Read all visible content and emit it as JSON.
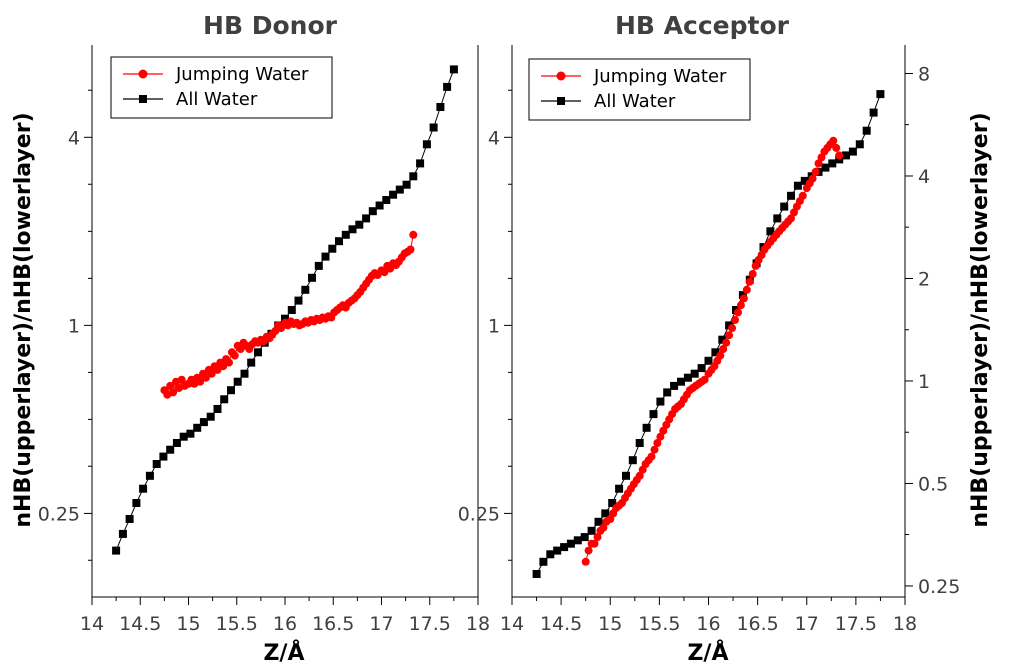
{
  "chart_data": [
    {
      "type": "scatter",
      "title": "HB Donor",
      "xlabel": "Z/Å",
      "ylabel": "nHB(upperlayer)/nHB(lowerlayer)",
      "xlim": [
        14,
        18
      ],
      "ylim": [
        0.135,
        7.9
      ],
      "yscale": "log2",
      "xticks": [
        "14",
        "14.5",
        "15",
        "15.5",
        "16",
        "16.5",
        "17",
        "17.5",
        "18"
      ],
      "yticks": [
        "0.25",
        "1",
        "4"
      ],
      "legend": "top-left",
      "series": [
        {
          "name": "Jumping Water",
          "color": "#ff0000",
          "marker": "circle",
          "x": [
            14.75,
            14.78,
            14.81,
            14.84,
            14.87,
            14.9,
            14.93,
            14.96,
            15.0,
            15.03,
            15.06,
            15.09,
            15.12,
            15.15,
            15.18,
            15.21,
            15.24,
            15.27,
            15.3,
            15.33,
            15.36,
            15.39,
            15.42,
            15.45,
            15.48,
            15.51,
            15.54,
            15.57,
            15.6,
            15.63,
            15.66,
            15.69,
            15.72,
            15.75,
            15.78,
            15.81,
            15.84,
            15.87,
            15.9,
            15.93,
            15.96,
            16.0,
            16.03,
            16.06,
            16.09,
            16.12,
            16.15,
            16.18,
            16.21,
            16.24,
            16.27,
            16.3,
            16.33,
            16.36,
            16.39,
            16.42,
            16.45,
            16.48,
            16.51,
            16.54,
            16.57,
            16.6,
            16.63,
            16.66,
            16.69,
            16.72,
            16.75,
            16.78,
            16.81,
            16.84,
            16.87,
            16.9,
            16.93,
            16.96,
            17.0,
            17.03,
            17.06,
            17.09,
            17.12,
            17.15,
            17.18,
            17.21,
            17.24,
            17.27,
            17.3,
            17.33
          ],
          "y": [
            0.62,
            0.6,
            0.64,
            0.61,
            0.66,
            0.63,
            0.67,
            0.64,
            0.65,
            0.67,
            0.65,
            0.68,
            0.66,
            0.7,
            0.68,
            0.72,
            0.7,
            0.74,
            0.72,
            0.76,
            0.74,
            0.78,
            0.76,
            0.82,
            0.8,
            0.86,
            0.84,
            0.88,
            0.86,
            0.84,
            0.87,
            0.89,
            0.88,
            0.9,
            0.89,
            0.92,
            0.91,
            0.94,
            0.96,
            1.0,
            0.98,
            1.02,
            1.0,
            1.03,
            1.01,
            1.02,
            1.0,
            1.01,
            1.03,
            1.02,
            1.04,
            1.03,
            1.05,
            1.04,
            1.06,
            1.05,
            1.07,
            1.06,
            1.1,
            1.12,
            1.14,
            1.16,
            1.14,
            1.18,
            1.2,
            1.22,
            1.25,
            1.28,
            1.32,
            1.36,
            1.4,
            1.44,
            1.47,
            1.45,
            1.5,
            1.48,
            1.55,
            1.52,
            1.58,
            1.56,
            1.6,
            1.65,
            1.7,
            1.72,
            1.75,
            1.95
          ]
        },
        {
          "name": "All Water",
          "color": "#000000",
          "marker": "square",
          "x": [
            14.25,
            14.32,
            14.39,
            14.46,
            14.53,
            14.6,
            14.67,
            14.74,
            14.81,
            14.88,
            14.95,
            15.02,
            15.09,
            15.16,
            15.23,
            15.3,
            15.37,
            15.44,
            15.51,
            15.58,
            15.65,
            15.72,
            15.79,
            15.86,
            15.93,
            16.0,
            16.07,
            16.14,
            16.21,
            16.28,
            16.35,
            16.42,
            16.49,
            16.56,
            16.63,
            16.7,
            16.77,
            16.84,
            16.91,
            16.98,
            17.05,
            17.12,
            17.19,
            17.26,
            17.33,
            17.4,
            17.47,
            17.54,
            17.61,
            17.68,
            17.75
          ],
          "y": [
            0.19,
            0.215,
            0.24,
            0.27,
            0.3,
            0.33,
            0.36,
            0.38,
            0.4,
            0.42,
            0.44,
            0.45,
            0.47,
            0.49,
            0.51,
            0.54,
            0.58,
            0.62,
            0.66,
            0.7,
            0.76,
            0.82,
            0.88,
            0.94,
            1.0,
            1.05,
            1.12,
            1.2,
            1.3,
            1.42,
            1.55,
            1.66,
            1.76,
            1.86,
            1.95,
            2.03,
            2.1,
            2.2,
            2.32,
            2.42,
            2.52,
            2.62,
            2.72,
            2.82,
            3.0,
            3.3,
            3.8,
            4.3,
            5.0,
            5.8,
            6.6
          ]
        }
      ]
    },
    {
      "type": "scatter",
      "title": "HB Acceptor",
      "xlabel": "Z/Å",
      "ylabel": "nHB(upperlayer)/nHB(lowerlayer)",
      "xlim": [
        14,
        18
      ],
      "ylim": [
        0.135,
        7.9
      ],
      "yscale": "log2",
      "xticks": [
        "14",
        "14.5",
        "15",
        "15.5",
        "16",
        "16.5",
        "17",
        "17.5",
        "18"
      ],
      "yticks": [
        "0.25",
        "1",
        "4"
      ],
      "y2lim": [
        0.232,
        9.7
      ],
      "y2scale": "log2",
      "y2ticks": [
        "0.25",
        "0.5",
        "1",
        "2",
        "4",
        "8"
      ],
      "legend": "top-left",
      "series": [
        {
          "name": "Jumping Water",
          "color": "#ff0000",
          "marker": "circle",
          "x": [
            14.75,
            14.78,
            14.81,
            14.84,
            14.87,
            14.9,
            14.93,
            14.96,
            15.0,
            15.03,
            15.06,
            15.09,
            15.12,
            15.15,
            15.18,
            15.21,
            15.24,
            15.27,
            15.3,
            15.33,
            15.36,
            15.39,
            15.42,
            15.45,
            15.48,
            15.51,
            15.54,
            15.57,
            15.6,
            15.63,
            15.66,
            15.69,
            15.72,
            15.75,
            15.78,
            15.81,
            15.84,
            15.87,
            15.9,
            15.93,
            15.96,
            16.0,
            16.03,
            16.06,
            16.09,
            16.12,
            16.15,
            16.18,
            16.21,
            16.24,
            16.27,
            16.3,
            16.33,
            16.36,
            16.39,
            16.42,
            16.45,
            16.48,
            16.51,
            16.54,
            16.57,
            16.6,
            16.63,
            16.66,
            16.69,
            16.72,
            16.75,
            16.78,
            16.81,
            16.84,
            16.87,
            16.9,
            16.93,
            16.96,
            17.0,
            17.03,
            17.06,
            17.09,
            17.12,
            17.15,
            17.18,
            17.21,
            17.24,
            17.27,
            17.3,
            17.33
          ],
          "y": [
            0.175,
            0.19,
            0.2,
            0.2,
            0.21,
            0.22,
            0.225,
            0.235,
            0.24,
            0.25,
            0.26,
            0.265,
            0.27,
            0.28,
            0.29,
            0.3,
            0.31,
            0.32,
            0.33,
            0.345,
            0.36,
            0.37,
            0.38,
            0.4,
            0.42,
            0.44,
            0.46,
            0.48,
            0.5,
            0.52,
            0.54,
            0.55,
            0.56,
            0.58,
            0.6,
            0.62,
            0.63,
            0.64,
            0.65,
            0.66,
            0.67,
            0.7,
            0.72,
            0.74,
            0.77,
            0.8,
            0.84,
            0.88,
            0.93,
            0.98,
            1.04,
            1.1,
            1.16,
            1.22,
            1.3,
            1.38,
            1.46,
            1.55,
            1.62,
            1.68,
            1.75,
            1.8,
            1.85,
            1.9,
            1.95,
            2.0,
            2.05,
            2.1,
            2.15,
            2.2,
            2.3,
            2.4,
            2.5,
            2.6,
            2.75,
            2.85,
            2.95,
            3.1,
            3.3,
            3.45,
            3.6,
            3.7,
            3.8,
            3.9,
            3.7,
            3.5
          ]
        },
        {
          "name": "All Water",
          "color": "#000000",
          "marker": "square",
          "x": [
            14.25,
            14.32,
            14.39,
            14.46,
            14.53,
            14.6,
            14.67,
            14.74,
            14.81,
            14.88,
            14.95,
            15.02,
            15.09,
            15.16,
            15.23,
            15.3,
            15.37,
            15.44,
            15.51,
            15.58,
            15.65,
            15.72,
            15.79,
            15.86,
            15.93,
            16.0,
            16.07,
            16.14,
            16.21,
            16.28,
            16.35,
            16.42,
            16.49,
            16.56,
            16.63,
            16.7,
            16.77,
            16.84,
            16.91,
            16.98,
            17.05,
            17.12,
            17.19,
            17.26,
            17.33,
            17.4,
            17.47,
            17.54,
            17.61,
            17.68,
            17.75
          ],
          "y": [
            0.16,
            0.175,
            0.185,
            0.19,
            0.195,
            0.2,
            0.205,
            0.21,
            0.22,
            0.235,
            0.25,
            0.27,
            0.3,
            0.33,
            0.37,
            0.42,
            0.47,
            0.52,
            0.57,
            0.61,
            0.64,
            0.66,
            0.68,
            0.7,
            0.73,
            0.77,
            0.82,
            0.9,
            1.0,
            1.12,
            1.25,
            1.4,
            1.58,
            1.78,
            2.0,
            2.2,
            2.4,
            2.6,
            2.8,
            2.9,
            3.0,
            3.1,
            3.2,
            3.3,
            3.4,
            3.5,
            3.6,
            3.8,
            4.2,
            4.8,
            5.5
          ]
        }
      ]
    }
  ]
}
